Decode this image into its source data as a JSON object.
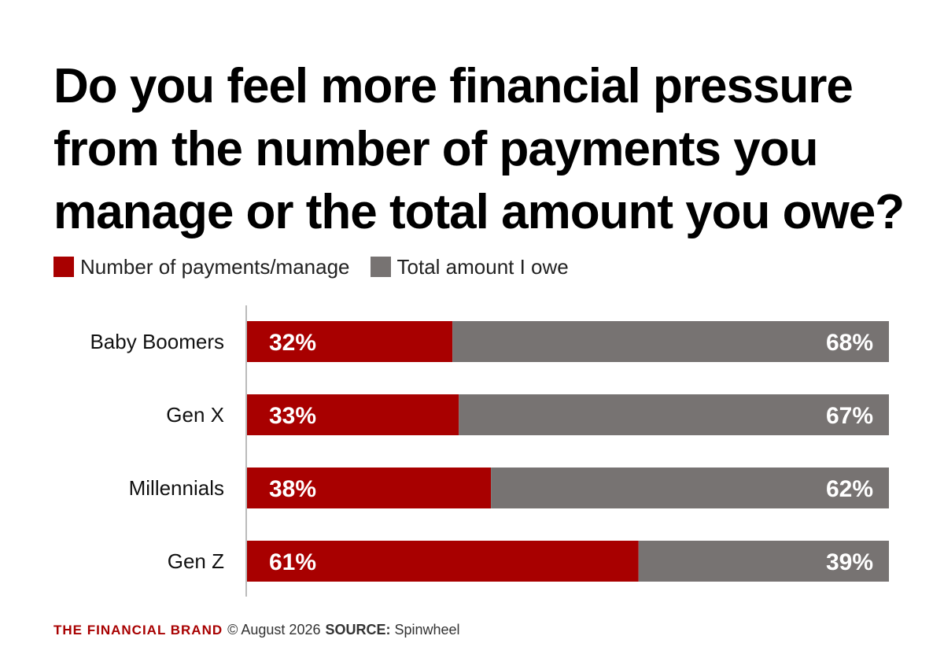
{
  "chart_data": {
    "type": "bar",
    "orientation": "horizontal",
    "stacked": true,
    "title": "Do you feel more financial pressure from the number of payments you manage or the total amount you owe?",
    "categories": [
      "Baby Boomers",
      "Gen X",
      "Millennials",
      "Gen Z"
    ],
    "series": [
      {
        "name": "Number of payments/manage",
        "values": [
          32,
          33,
          38,
          61
        ],
        "labels": [
          "32%",
          "33%",
          "38%",
          "61%"
        ],
        "color": "#a80000"
      },
      {
        "name": "Total amount I owe",
        "values": [
          68,
          67,
          62,
          39
        ],
        "labels": [
          "68%",
          "67%",
          "62%",
          "39%"
        ],
        "color": "#777372"
      }
    ],
    "xlim": [
      0,
      100
    ],
    "legend_position": "top-left",
    "grid": false
  },
  "footer": {
    "brand": "THE FINANCIAL BRAND",
    "brand_color": "#a80000",
    "date": "© August 2026",
    "source_label": "SOURCE:",
    "source": "Spinwheel"
  }
}
